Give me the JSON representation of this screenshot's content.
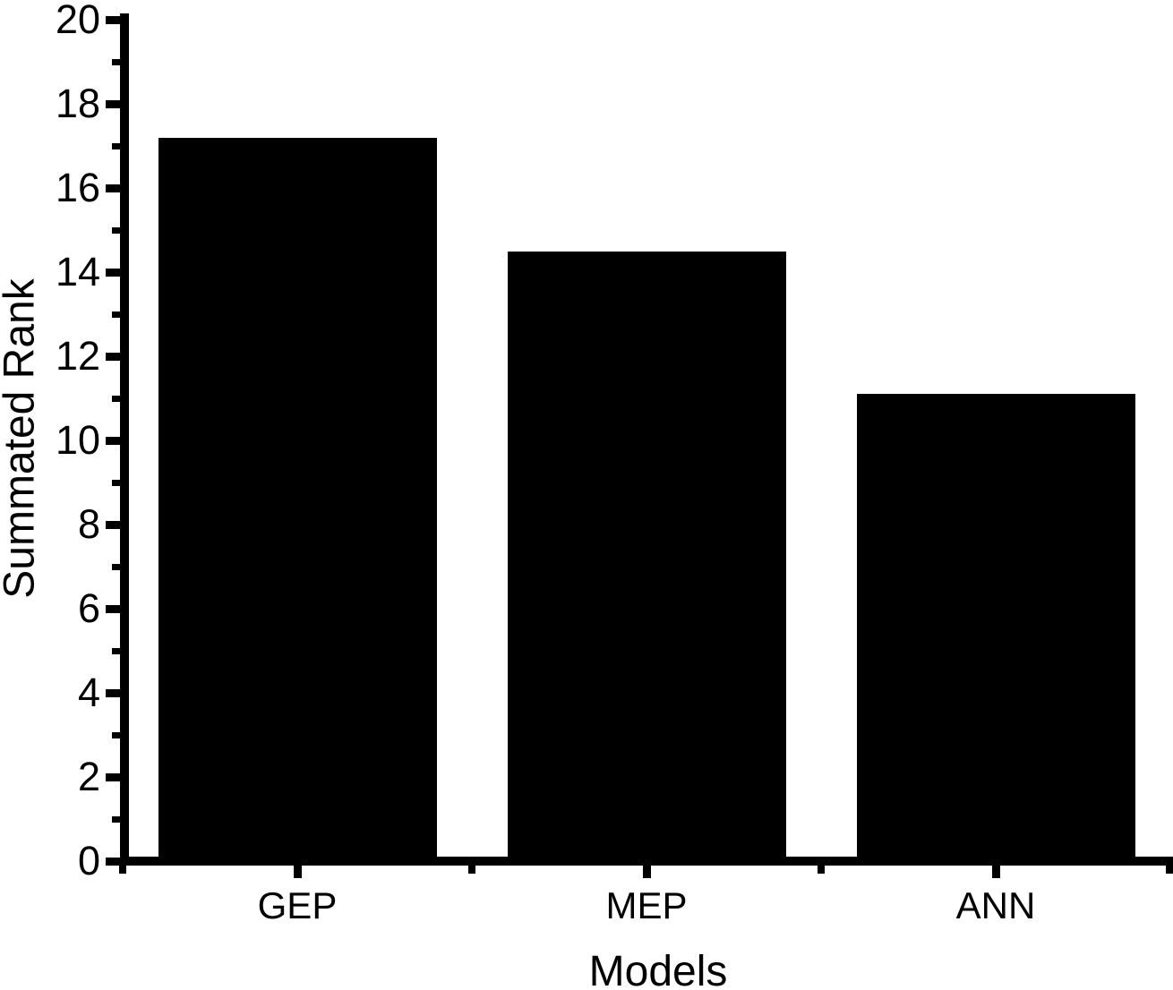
{
  "figure": {
    "background": "#ffffff"
  },
  "chart_data": {
    "type": "bar",
    "categories": [
      "GEP",
      "MEP",
      "ANN"
    ],
    "values": [
      17.2,
      14.5,
      11.1
    ],
    "title": "",
    "xlabel": "Models",
    "ylabel": "Summated Rank",
    "ylim": [
      0,
      20
    ],
    "y_major_step": 2,
    "y_minor_step": 1,
    "y_tick_labels": [
      "0",
      "2",
      "4",
      "6",
      "8",
      "10",
      "12",
      "14",
      "16",
      "18",
      "20"
    ],
    "grid": false,
    "legend": "none",
    "axis_color": "#000000",
    "bar_border_color": "#000000",
    "bar_pattern": "fine-checker",
    "bar_pattern_colors": [
      "#8f8c08",
      "#060600"
    ]
  }
}
